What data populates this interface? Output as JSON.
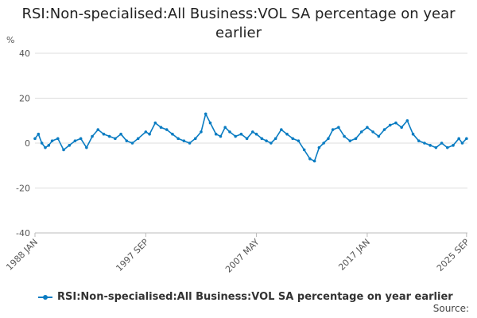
{
  "chart_data": {
    "type": "line",
    "title": "RSI:Non-specialised:All Business:VOL SA percentage on year earlier",
    "ylabel": "%",
    "xlabel": "",
    "ylim": [
      -40,
      40
    ],
    "yticks": [
      40,
      20,
      0,
      -20,
      -40
    ],
    "xlim": [
      1988.0,
      2025.75
    ],
    "xticks": [
      {
        "label": "1988 JAN",
        "x": 1988.0
      },
      {
        "label": "1997 SEP",
        "x": 1997.67
      },
      {
        "label": "2007 MAY",
        "x": 2007.33
      },
      {
        "label": "2017 JAN",
        "x": 2017.0
      },
      {
        "label": "2025 SEP",
        "x": 2025.67
      }
    ],
    "series": [
      {
        "name": "RSI:Non-specialised:All Business:VOL SA percentage on year earlier",
        "color": "#0a7cc2",
        "points": [
          [
            1988.0,
            2
          ],
          [
            1988.3,
            4
          ],
          [
            1988.6,
            0
          ],
          [
            1988.9,
            -2
          ],
          [
            1989.2,
            -1
          ],
          [
            1989.5,
            1
          ],
          [
            1990.0,
            2
          ],
          [
            1990.5,
            -3
          ],
          [
            1991.0,
            -1
          ],
          [
            1991.5,
            1
          ],
          [
            1992.0,
            2
          ],
          [
            1992.5,
            -2
          ],
          [
            1993.0,
            3
          ],
          [
            1993.5,
            6
          ],
          [
            1994.0,
            4
          ],
          [
            1994.5,
            3
          ],
          [
            1995.0,
            2
          ],
          [
            1995.5,
            4
          ],
          [
            1996.0,
            1
          ],
          [
            1996.5,
            0
          ],
          [
            1997.0,
            2
          ],
          [
            1997.67,
            5
          ],
          [
            1998.0,
            4
          ],
          [
            1998.5,
            9
          ],
          [
            1999.0,
            7
          ],
          [
            1999.5,
            6
          ],
          [
            2000.0,
            4
          ],
          [
            2000.5,
            2
          ],
          [
            2001.0,
            1
          ],
          [
            2001.5,
            0
          ],
          [
            2002.0,
            2
          ],
          [
            2002.5,
            5
          ],
          [
            2002.9,
            13
          ],
          [
            2003.3,
            9
          ],
          [
            2003.8,
            4
          ],
          [
            2004.2,
            3
          ],
          [
            2004.6,
            7
          ],
          [
            2005.0,
            5
          ],
          [
            2005.5,
            3
          ],
          [
            2006.0,
            4
          ],
          [
            2006.5,
            2
          ],
          [
            2007.0,
            5
          ],
          [
            2007.33,
            4
          ],
          [
            2007.8,
            2
          ],
          [
            2008.2,
            1
          ],
          [
            2008.6,
            0
          ],
          [
            2009.0,
            2
          ],
          [
            2009.5,
            6
          ],
          [
            2010.0,
            4
          ],
          [
            2010.5,
            2
          ],
          [
            2011.0,
            1
          ],
          [
            2011.5,
            -3
          ],
          [
            2012.0,
            -7
          ],
          [
            2012.4,
            -8
          ],
          [
            2012.8,
            -2
          ],
          [
            2013.2,
            0
          ],
          [
            2013.6,
            2
          ],
          [
            2014.0,
            6
          ],
          [
            2014.5,
            7
          ],
          [
            2015.0,
            3
          ],
          [
            2015.5,
            1
          ],
          [
            2016.0,
            2
          ],
          [
            2016.5,
            5
          ],
          [
            2017.0,
            7
          ],
          [
            2017.5,
            5
          ],
          [
            2018.0,
            3
          ],
          [
            2018.5,
            6
          ],
          [
            2019.0,
            8
          ],
          [
            2019.5,
            9
          ],
          [
            2020.0,
            7
          ],
          [
            2020.5,
            10
          ],
          [
            2021.0,
            4
          ],
          [
            2021.5,
            1
          ],
          [
            2022.0,
            0
          ],
          [
            2022.5,
            -1
          ],
          [
            2023.0,
            -2
          ],
          [
            2023.5,
            0
          ],
          [
            2024.0,
            -2
          ],
          [
            2024.5,
            -1
          ],
          [
            2025.0,
            2
          ],
          [
            2025.3,
            0
          ],
          [
            2025.67,
            2
          ]
        ]
      }
    ],
    "legend_position": "bottom",
    "gridlines": true,
    "source_label": "Source:"
  }
}
